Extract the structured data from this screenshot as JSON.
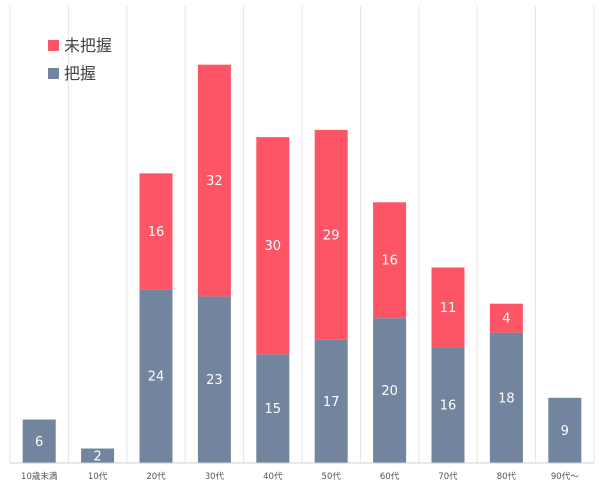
{
  "chart_data": {
    "type": "bar",
    "stacked": true,
    "categories": [
      "10歳未満",
      "10代",
      "20代",
      "30代",
      "40代",
      "50代",
      "60代",
      "70代",
      "80代",
      "90代〜"
    ],
    "series": [
      {
        "name": "把握",
        "color": "#72849e",
        "values": [
          6,
          2,
          24,
          23,
          15,
          17,
          20,
          16,
          18,
          9
        ]
      },
      {
        "name": "未把握",
        "color": "#fe5566",
        "values": [
          0,
          0,
          16,
          32,
          30,
          29,
          16,
          11,
          4,
          0
        ]
      }
    ],
    "ylim": [
      0,
      62
    ],
    "grid": "vertical-category-separators",
    "legend": {
      "position": "top-left",
      "order": [
        "未把握",
        "把握"
      ]
    },
    "data_labels": true
  }
}
